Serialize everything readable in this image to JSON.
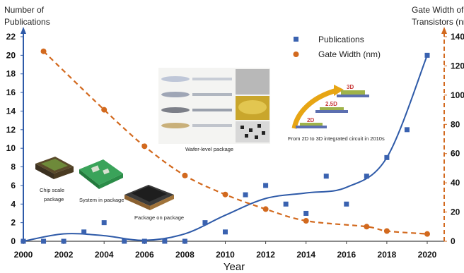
{
  "chart_data": {
    "type": "scatter",
    "xlabel": "Year",
    "ylabel_left": [
      "Number of",
      "Publications"
    ],
    "ylabel_right": [
      "Gate Width of",
      "Transistors (nm)"
    ],
    "xlim": [
      2000,
      2020
    ],
    "ylim_left": [
      0,
      22
    ],
    "ylim_right": [
      0,
      140
    ],
    "x_ticks": [
      2000,
      2002,
      2004,
      2006,
      2008,
      2010,
      2012,
      2014,
      2016,
      2018,
      2020
    ],
    "y_ticks_left": [
      0,
      2,
      4,
      6,
      8,
      10,
      12,
      14,
      16,
      18,
      20,
      22
    ],
    "y_ticks_right": [
      0,
      20,
      40,
      60,
      80,
      100,
      120,
      140
    ],
    "legend_position": "top-right",
    "series": [
      {
        "name": "Publications",
        "axis": "left",
        "marker": "square",
        "color": "#3a62b0",
        "x": [
          2000,
          2001,
          2002,
          2003,
          2004,
          2005,
          2006,
          2007,
          2008,
          2009,
          2010,
          2011,
          2012,
          2013,
          2014,
          2015,
          2016,
          2017,
          2018,
          2019,
          2020
        ],
        "values": [
          0,
          0,
          0,
          1,
          2,
          0,
          0,
          0,
          0,
          2,
          1,
          5,
          6,
          4,
          3,
          7,
          4,
          7,
          9,
          12,
          20
        ]
      },
      {
        "name": "Gate Width (nm)",
        "axis": "right",
        "marker": "circle",
        "color": "#d2691e",
        "x": [
          2001,
          2004,
          2006,
          2008,
          2010,
          2012,
          2014,
          2017,
          2018,
          2020
        ],
        "values": [
          130,
          90,
          65,
          45,
          32,
          22,
          14,
          10,
          7,
          5
        ]
      }
    ],
    "annotations": {
      "chip_scale": [
        "Chip scale",
        "package"
      ],
      "system_in_package": "System in package",
      "package_on_package": "Package on package",
      "wafer_level": "Wafer-level package",
      "integration": "From 2D to 3D integrated circuit in 2010s",
      "label_3d": "3D",
      "label_25d": "2.5D",
      "label_2d": "2D"
    },
    "colors": {
      "axis_blue": "#2e5aa8",
      "axis_orange": "#d2691e",
      "fit_line": "#2e5aa8"
    }
  }
}
